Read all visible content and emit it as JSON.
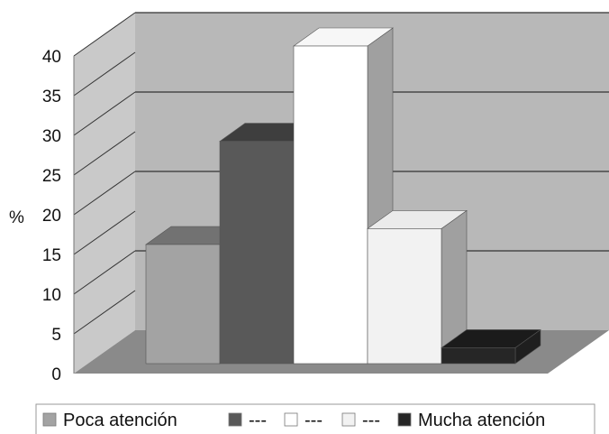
{
  "chart_data": {
    "type": "bar",
    "ylabel": "%",
    "ylim": [
      0,
      40
    ],
    "yticks": [
      "0",
      "5",
      "10",
      "15",
      "20",
      "25",
      "30",
      "35",
      "40"
    ],
    "categories": [
      "Poca atención",
      "---",
      "---",
      "---",
      "Mucha atención"
    ],
    "values": [
      15,
      28,
      40,
      17,
      2
    ],
    "colors": [
      "#a3a3a3",
      "#595959",
      "#ffffff",
      "#f2f2f2",
      "#262626"
    ],
    "gridlines": true,
    "legend": "bottom",
    "style": "3d"
  }
}
